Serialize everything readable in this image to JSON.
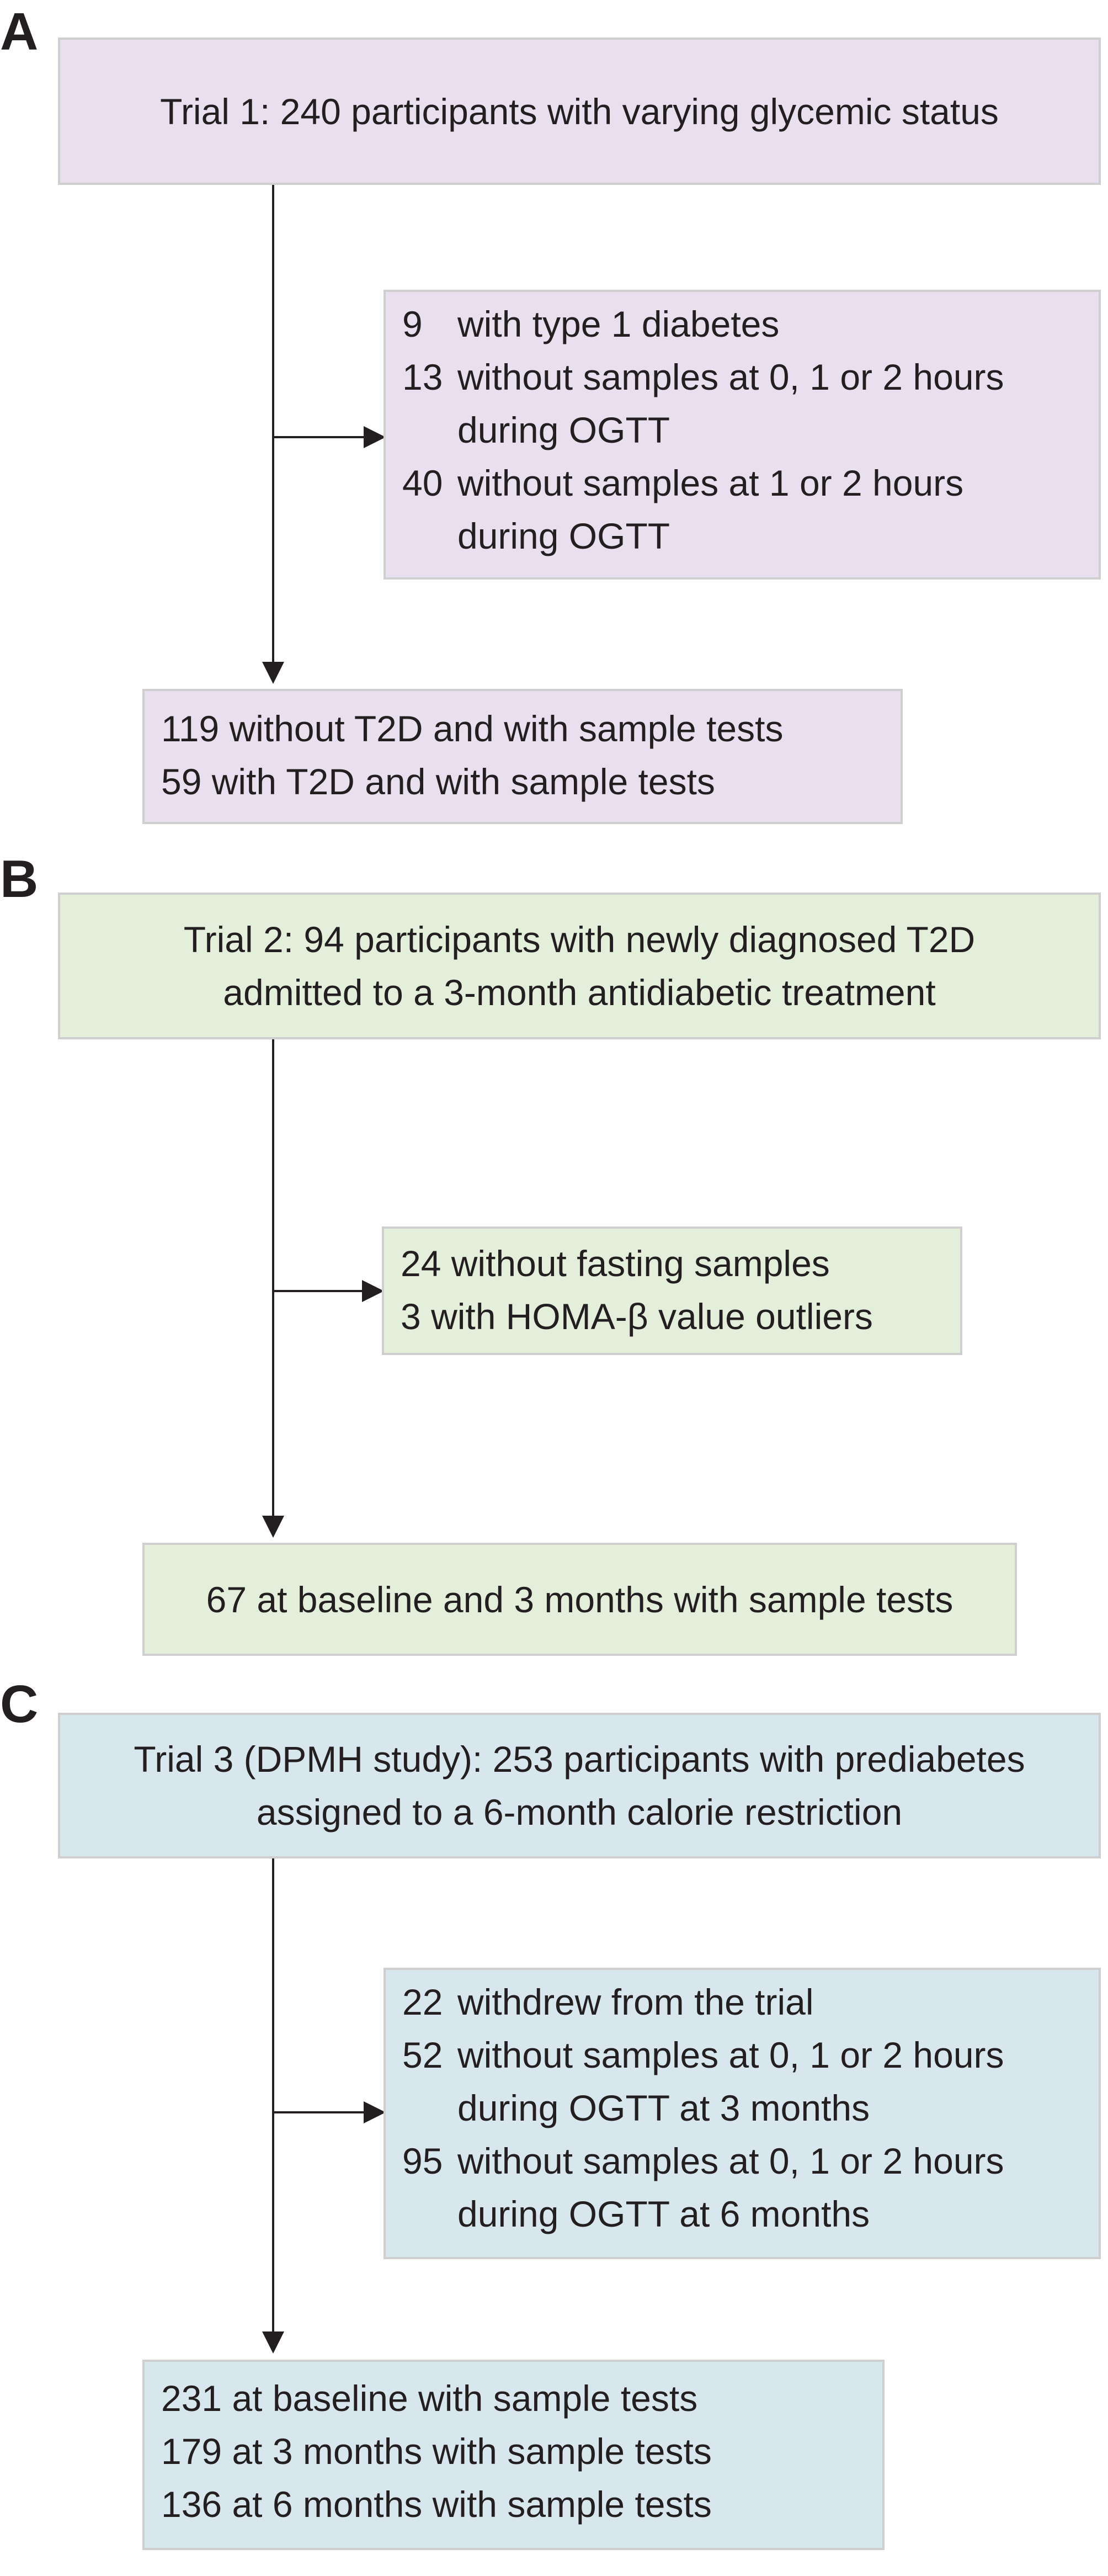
{
  "panels": [
    {
      "letter": "A",
      "top_box": [
        "Trial 1: 240 participants with varying glycemic status"
      ],
      "excluded": [
        {
          "count": "9",
          "lines": [
            "with type 1 diabetes"
          ]
        },
        {
          "count": "13",
          "lines": [
            "without samples at 0, 1 or 2 hours",
            "during OGTT"
          ]
        },
        {
          "count": "40",
          "lines": [
            "without samples at 1 or 2 hours",
            "during OGTT"
          ]
        }
      ],
      "result": [
        "119 without T2D and with sample tests",
        "59 with T2D and with sample tests"
      ]
    },
    {
      "letter": "B",
      "top_box": [
        "Trial 2: 94 participants with newly diagnosed T2D",
        "admitted to a 3-month antidiabetic treatment"
      ],
      "excluded": [
        {
          "count": "24",
          "lines": [
            "without fasting samples"
          ]
        },
        {
          "count": "3",
          "lines": [
            "with HOMA-β value outliers"
          ]
        }
      ],
      "result": [
        "67 at baseline and 3 months with sample tests"
      ]
    },
    {
      "letter": "C",
      "top_box": [
        "Trial 3 (DPMH study): 253 participants with prediabetes",
        "assigned to a 6-month calorie restriction"
      ],
      "excluded": [
        {
          "count": "22",
          "lines": [
            "withdrew from the trial"
          ]
        },
        {
          "count": "52",
          "lines": [
            "without samples at 0, 1 or 2 hours",
            "during OGTT at 3 months"
          ]
        },
        {
          "count": "95",
          "lines": [
            "without samples at 0, 1 or 2 hours",
            "during OGTT at 6 months"
          ]
        }
      ],
      "result": [
        "231 at baseline with sample tests",
        "179 at 3 months with sample tests",
        "136 at 6 months with sample tests"
      ]
    }
  ],
  "colors": {
    "panel_a_fill": "#e8e0ef",
    "panel_b_fill": "#e3eedb",
    "panel_c_fill": "#d8e7ee",
    "border": "#cfcfcf",
    "arrow": "#231f20"
  }
}
